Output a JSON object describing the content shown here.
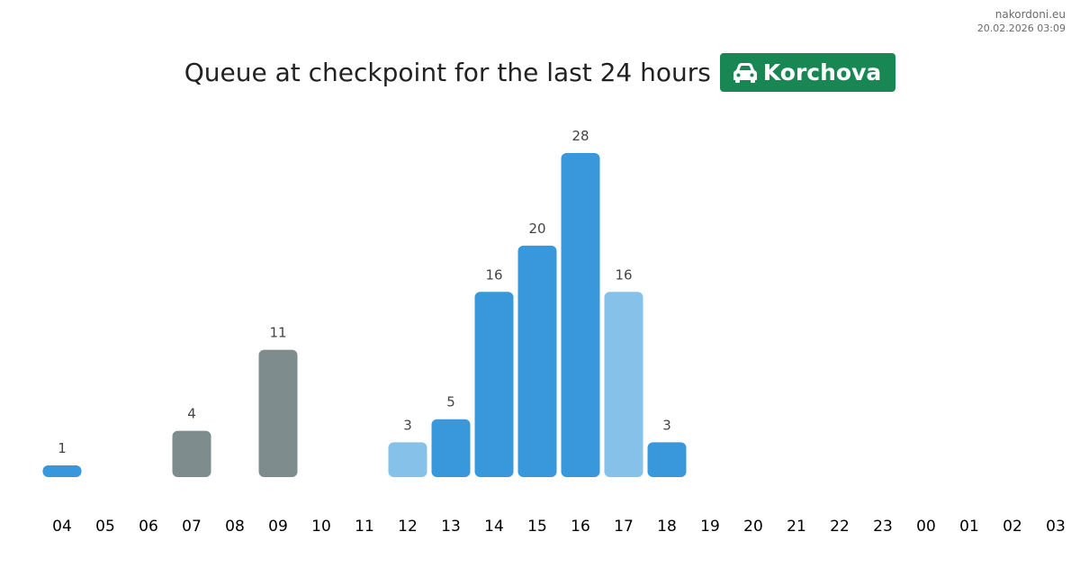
{
  "source": {
    "site": "nakordoni.eu",
    "timestamp": "20.02.2026 03:09"
  },
  "header": {
    "title": "Queue at checkpoint for the last 24 hours",
    "badge_label": "Korchova",
    "badge_icon": "car-icon"
  },
  "colors": {
    "badge": "#198754",
    "bar_blue": "#3898db",
    "bar_light_blue": "#86c1ea",
    "bar_gray": "#7f8c8d",
    "value_label": "#444444",
    "tick_label": "#000000"
  },
  "chart_data": {
    "type": "bar",
    "title": "Queue at checkpoint for the last 24 hours",
    "xlabel": "",
    "ylabel": "",
    "grid": false,
    "legend": "none",
    "ylim": [
      0,
      28
    ],
    "categories": [
      "04",
      "05",
      "06",
      "07",
      "08",
      "09",
      "10",
      "11",
      "12",
      "13",
      "14",
      "15",
      "16",
      "17",
      "18",
      "19",
      "20",
      "21",
      "22",
      "23",
      "00",
      "01",
      "02",
      "03"
    ],
    "values": [
      1,
      null,
      null,
      4,
      null,
      11,
      null,
      null,
      3,
      5,
      16,
      20,
      28,
      16,
      3,
      null,
      null,
      null,
      null,
      null,
      null,
      null,
      null,
      null
    ],
    "bar_colors": [
      "blue",
      null,
      null,
      "gray",
      null,
      "gray",
      null,
      null,
      "light_blue",
      "blue",
      "blue",
      "blue",
      "blue",
      "light_blue",
      "blue",
      null,
      null,
      null,
      null,
      null,
      null,
      null,
      null,
      null
    ]
  }
}
